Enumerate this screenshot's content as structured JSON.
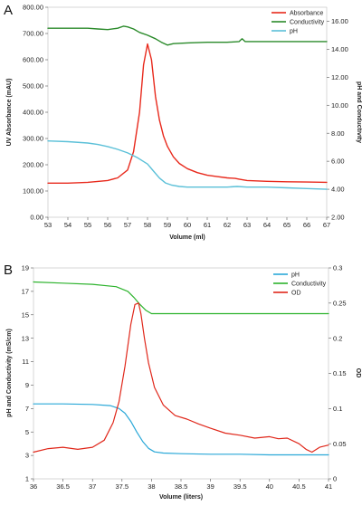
{
  "chart_data": [
    {
      "type": "line",
      "panel_label": "A",
      "xlabel": "Volume (ml)",
      "ylabel_left": "UV Absorbance (mAU)",
      "ylabel_right": "pH and Conductivity",
      "xlim": [
        53,
        67
      ],
      "ylim_left": [
        0,
        800
      ],
      "ylim_right": [
        2,
        17
      ],
      "x_ticks": [
        "53",
        "54",
        "55",
        "56",
        "57",
        "58",
        "59",
        "60",
        "61",
        "62",
        "63",
        "64",
        "65",
        "66",
        "67"
      ],
      "y_ticks_left": [
        "0.00",
        "100.00",
        "200.00",
        "300.00",
        "400.00",
        "500.00",
        "600.00",
        "700.00",
        "800.00"
      ],
      "y_ticks_right": [
        "2.00",
        "4.00",
        "6.00",
        "8.00",
        "10.00",
        "12.00",
        "14.00",
        "16.00"
      ],
      "legend_position": "top-right",
      "colors": {
        "Absorbance": "#e8291c",
        "Conductivity": "#2a8a2a",
        "pH": "#5bc0d8"
      },
      "series": [
        {
          "name": "Absorbance",
          "axis": "left",
          "x": [
            53,
            54,
            55,
            56,
            56.5,
            57,
            57.3,
            57.6,
            57.8,
            58.0,
            58.2,
            58.4,
            58.6,
            58.8,
            59.0,
            59.3,
            59.6,
            60.0,
            60.5,
            61,
            61.5,
            62,
            62.4,
            62.6,
            63,
            64,
            65,
            66,
            67
          ],
          "y": [
            130,
            130,
            133,
            140,
            150,
            180,
            250,
            400,
            580,
            660,
            600,
            460,
            370,
            310,
            270,
            230,
            205,
            185,
            170,
            160,
            155,
            150,
            148,
            145,
            140,
            137,
            135,
            134,
            133
          ]
        },
        {
          "name": "Conductivity",
          "axis": "right",
          "x": [
            53,
            54,
            55,
            55.5,
            56,
            56.5,
            56.8,
            57.0,
            57.3,
            57.6,
            58.0,
            58.4,
            58.7,
            59.0,
            59.3,
            60,
            61,
            62,
            62.6,
            62.75,
            62.9,
            63.5,
            64,
            65,
            66,
            67
          ],
          "y": [
            15.5,
            15.5,
            15.5,
            15.45,
            15.4,
            15.5,
            15.65,
            15.6,
            15.45,
            15.2,
            15.0,
            14.75,
            14.5,
            14.3,
            14.4,
            14.45,
            14.5,
            14.5,
            14.55,
            14.75,
            14.55,
            14.55,
            14.55,
            14.55,
            14.55,
            14.55
          ]
        },
        {
          "name": "pH",
          "axis": "right",
          "x": [
            53,
            54,
            55,
            55.5,
            56,
            56.5,
            57,
            57.5,
            58,
            58.3,
            58.6,
            58.9,
            59.2,
            59.6,
            60,
            61,
            62,
            62.5,
            63,
            64,
            65,
            66,
            67
          ],
          "y": [
            7.45,
            7.4,
            7.3,
            7.2,
            7.05,
            6.85,
            6.6,
            6.25,
            5.8,
            5.3,
            4.8,
            4.45,
            4.3,
            4.2,
            4.15,
            4.15,
            4.15,
            4.2,
            4.15,
            4.15,
            4.1,
            4.05,
            4.0
          ]
        }
      ]
    },
    {
      "type": "line",
      "panel_label": "B",
      "xlabel": "Volume (liters)",
      "ylabel_left": "pH and Conductivity (mS/cm)",
      "ylabel_right": "OD",
      "xlim": [
        36,
        41
      ],
      "ylim_left": [
        1,
        19
      ],
      "ylim_right": [
        0,
        0.3
      ],
      "x_ticks": [
        "36",
        "36.5",
        "37",
        "37.5",
        "38",
        "38.5",
        "39",
        "39.5",
        "40",
        "40.5",
        "41"
      ],
      "y_ticks_left": [
        "1",
        "3",
        "5",
        "7",
        "9",
        "11",
        "13",
        "15",
        "17",
        "19"
      ],
      "y_ticks_right": [
        "0",
        "0.05",
        "0.1",
        "0.15",
        "0.2",
        "0.25",
        "0.3"
      ],
      "legend_position": "top-right",
      "colors": {
        "pH": "#2aa8d8",
        "Conductivity": "#2db32d",
        "OD": "#e0271a"
      },
      "series": [
        {
          "name": "pH",
          "axis": "left",
          "x": [
            36,
            36.5,
            37,
            37.3,
            37.45,
            37.55,
            37.65,
            37.75,
            37.85,
            37.95,
            38.05,
            38.2,
            38.5,
            39,
            39.5,
            40,
            40.5,
            41
          ],
          "y": [
            7.4,
            7.4,
            7.35,
            7.25,
            7.0,
            6.6,
            5.9,
            5.0,
            4.2,
            3.6,
            3.3,
            3.2,
            3.15,
            3.1,
            3.1,
            3.05,
            3.05,
            3.05
          ]
        },
        {
          "name": "Conductivity",
          "axis": "left",
          "x": [
            36,
            36.5,
            37,
            37.4,
            37.6,
            37.7,
            37.8,
            37.9,
            38.0,
            38.2,
            38.5,
            39,
            39.5,
            40,
            40.5,
            41
          ],
          "y": [
            17.8,
            17.7,
            17.6,
            17.4,
            17.0,
            16.5,
            15.9,
            15.4,
            15.1,
            15.1,
            15.1,
            15.1,
            15.1,
            15.1,
            15.1,
            15.1
          ]
        },
        {
          "name": "OD",
          "axis": "right",
          "x": [
            36,
            36.25,
            36.5,
            36.75,
            37.0,
            37.2,
            37.35,
            37.45,
            37.55,
            37.65,
            37.72,
            37.78,
            37.82,
            37.88,
            37.95,
            38.05,
            38.2,
            38.4,
            38.6,
            38.8,
            39.0,
            39.25,
            39.5,
            39.75,
            40.0,
            40.15,
            40.3,
            40.5,
            40.62,
            40.72,
            40.85,
            41.0
          ],
          "y": [
            0.038,
            0.043,
            0.045,
            0.042,
            0.045,
            0.055,
            0.08,
            0.11,
            0.16,
            0.22,
            0.248,
            0.25,
            0.235,
            0.2,
            0.165,
            0.13,
            0.105,
            0.09,
            0.085,
            0.078,
            0.072,
            0.065,
            0.062,
            0.058,
            0.06,
            0.057,
            0.058,
            0.05,
            0.042,
            0.038,
            0.045,
            0.048
          ]
        }
      ]
    }
  ]
}
